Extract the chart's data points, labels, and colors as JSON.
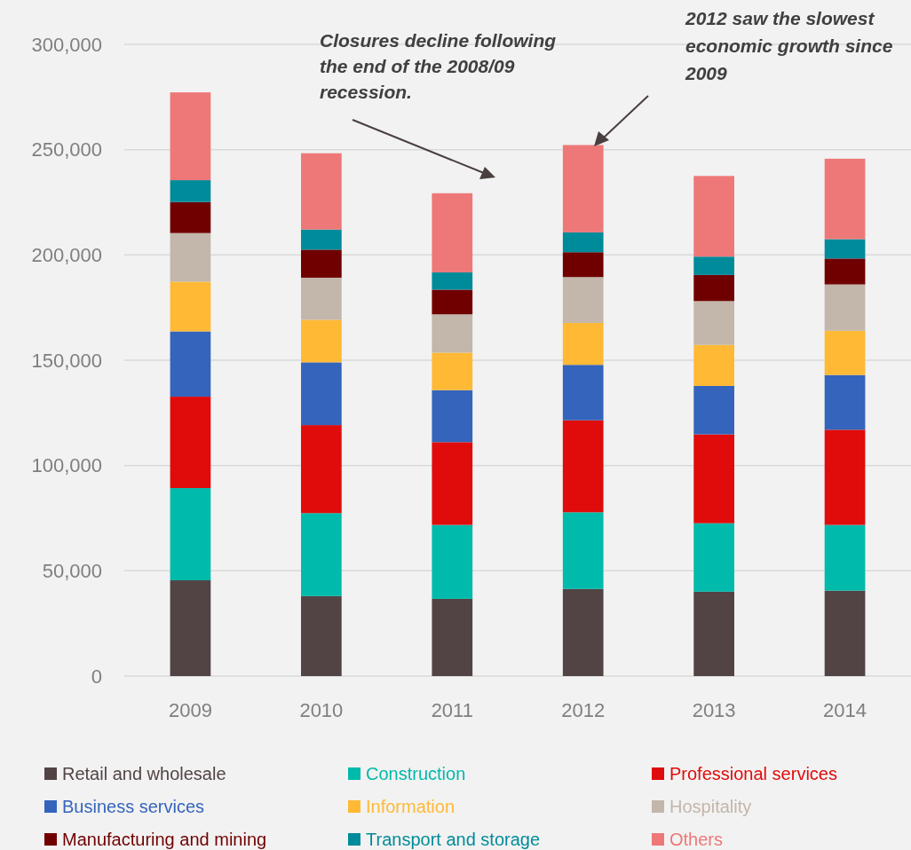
{
  "chart_data": {
    "type": "bar",
    "stacked": true,
    "categories": [
      "2009",
      "2010",
      "2011",
      "2012",
      "2013",
      "2014"
    ],
    "ylim": [
      0,
      300000
    ],
    "yticks": [
      {
        "value": 0,
        "label": "0"
      },
      {
        "value": 50000,
        "label": "50,000"
      },
      {
        "value": 100000,
        "label": "100,000"
      },
      {
        "value": 150000,
        "label": "150,000"
      },
      {
        "value": 200000,
        "label": "200,000"
      },
      {
        "value": 250000,
        "label": "250,000"
      },
      {
        "value": 300000,
        "label": "300,000"
      }
    ],
    "grid": "y",
    "legend": "bottom",
    "annotations": [
      "Closures decline following the end of the 2008/09 recession.",
      "2012 saw the slowest economic growth since 2009"
    ],
    "series": [
      {
        "name": "Retail and wholesale",
        "color": "#524444",
        "values": [
          45500,
          38000,
          36700,
          41400,
          40100,
          40600
        ]
      },
      {
        "name": "Construction",
        "color": "#00baab",
        "values": [
          43800,
          39400,
          35100,
          36400,
          32500,
          31200
        ]
      },
      {
        "name": "Professional services",
        "color": "#e00b0b",
        "values": [
          43400,
          41800,
          39300,
          43700,
          42200,
          45200
        ]
      },
      {
        "name": "Business services",
        "color": "#3464bb",
        "values": [
          31000,
          29800,
          24700,
          26300,
          23000,
          26000
        ]
      },
      {
        "name": "Information",
        "color": "#ffb935",
        "values": [
          23600,
          20200,
          17800,
          19900,
          19500,
          21000
        ]
      },
      {
        "name": "Hospitality",
        "color": "#c3b6aa",
        "values": [
          23100,
          20000,
          18200,
          21800,
          20800,
          22000
        ]
      },
      {
        "name": "Manufacturing and mining",
        "color": "#700000",
        "values": [
          14700,
          13300,
          11700,
          11800,
          12400,
          12300
        ]
      },
      {
        "name": "Transport and storage",
        "color": "#008b9a",
        "values": [
          10400,
          9600,
          8200,
          9400,
          8700,
          9200
        ]
      },
      {
        "name": "Others",
        "color": "#ee7878",
        "values": [
          41700,
          36200,
          37600,
          41500,
          38300,
          38200
        ]
      }
    ]
  }
}
